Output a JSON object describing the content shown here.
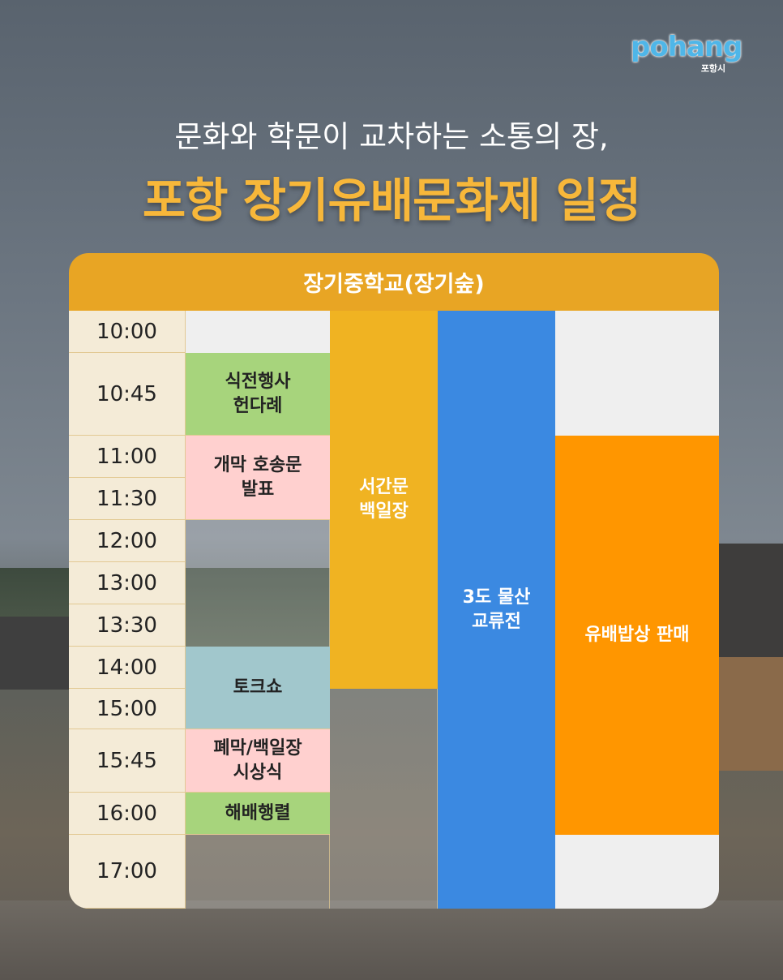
{
  "logo": {
    "brand": "pohang",
    "city": "포항시"
  },
  "header": {
    "subtitle": "문화와 학문이 교차하는 소통의 장,",
    "title": "포항 장기유배문화제 일정"
  },
  "table": {
    "venue": "장기중학교(장기숲)",
    "times": [
      "10:00",
      "10:45",
      "11:00",
      "11:30",
      "12:00",
      "13:00",
      "13:30",
      "14:00",
      "15:00",
      "15:45",
      "16:00",
      "17:00"
    ],
    "events": [
      {
        "label": "식전행사\n헌다례"
      },
      {
        "label": "개막 호송문\n발표"
      },
      {
        "label": "토크쇼"
      },
      {
        "label": "폐막/백일장\n시상식"
      },
      {
        "label": "해배행렬"
      },
      {
        "label": "서간문\n백일장"
      },
      {
        "label": "3도 물산\n교류전"
      },
      {
        "label": "유배밥상 판매"
      }
    ]
  }
}
